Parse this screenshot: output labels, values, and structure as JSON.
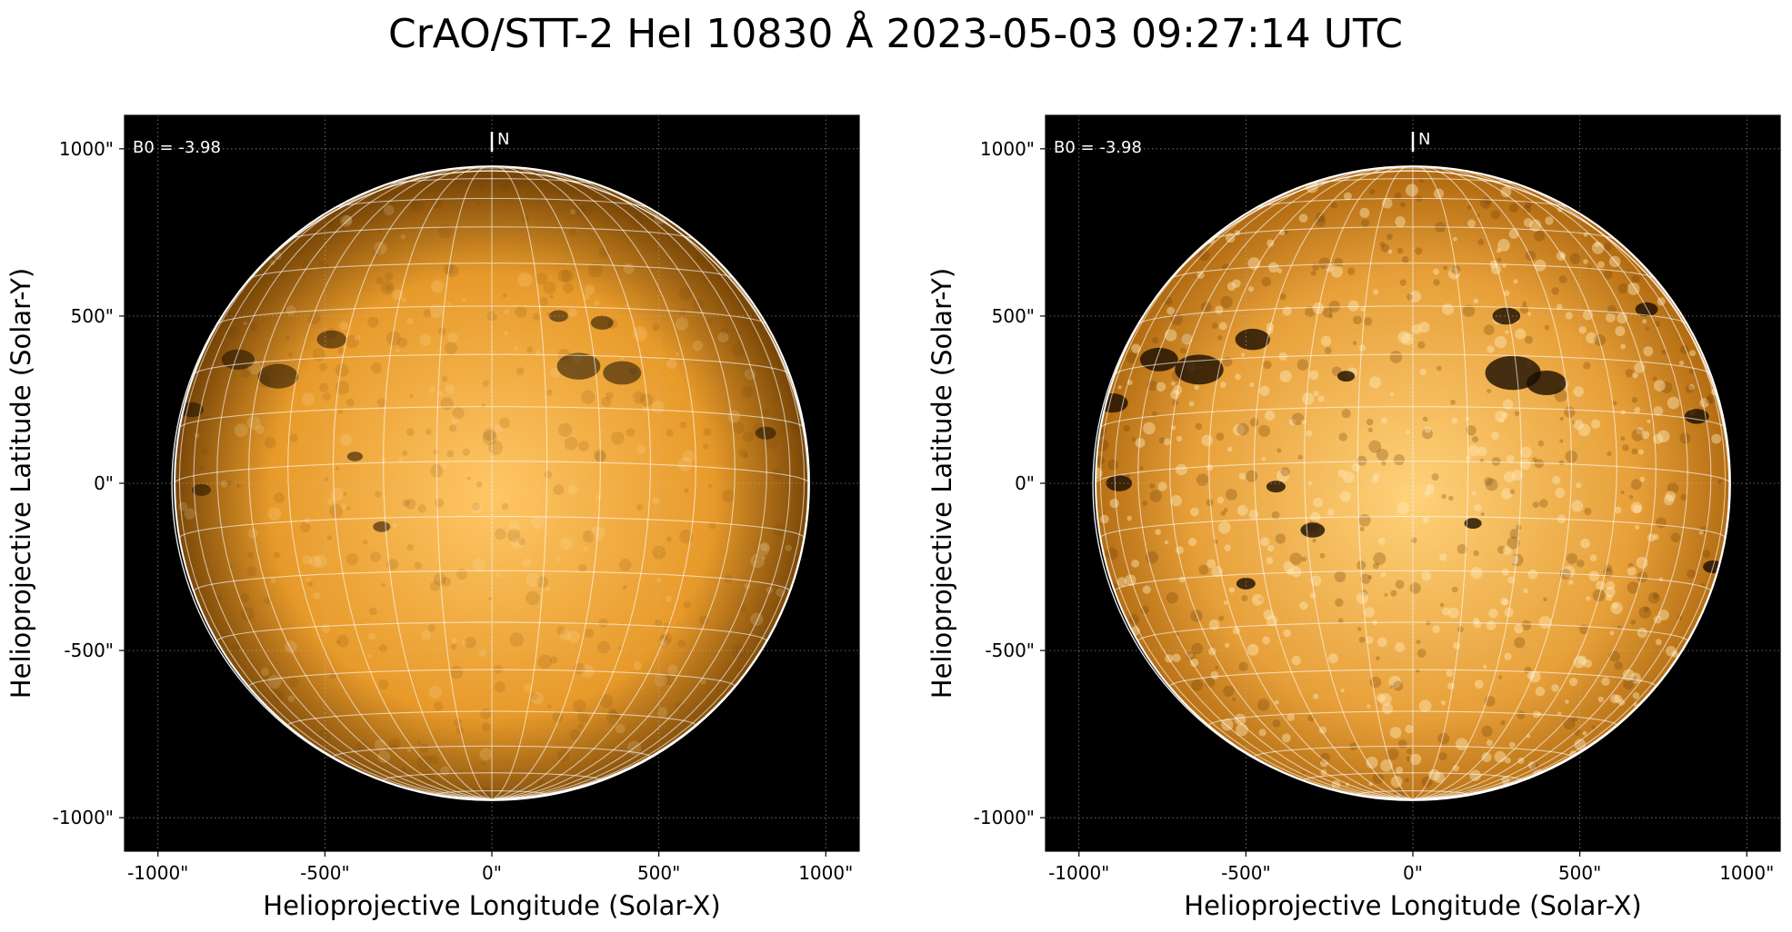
{
  "figure": {
    "title": "CrAO/STT-2 HeI 10830 Å 2023-05-03 09:27:14 UTC"
  },
  "panels": [
    {
      "id": "left",
      "b0_label": "B0 = -3.98",
      "north_label": "N",
      "xlabel": "Helioprojective Longitude (Solar-X)",
      "ylabel": "Helioprojective Latitude (Solar-Y)",
      "xticks": [
        "-1000\"",
        "-500\"",
        "0\"",
        "500\"",
        "1000\""
      ],
      "yticks": [
        "1000\"",
        "500\"",
        "0\"",
        "-500\"",
        "-1000\""
      ],
      "xtick_values": [
        -1000,
        -500,
        0,
        500,
        1000
      ],
      "ytick_values": [
        1000,
        500,
        0,
        -500,
        -1000
      ],
      "range": [
        -1100,
        1100
      ],
      "solar_radius_arcsec": 950,
      "disk_colors": {
        "center": "#ffc766",
        "mid": "#e79a2a",
        "limb": "#7a4707"
      },
      "dark_features": [
        [
          -760,
          370,
          38
        ],
        [
          -640,
          320,
          46
        ],
        [
          -480,
          430,
          34
        ],
        [
          -900,
          220,
          28
        ],
        [
          260,
          350,
          50
        ],
        [
          390,
          330,
          44
        ],
        [
          330,
          480,
          26
        ],
        [
          -870,
          -20,
          22
        ],
        [
          200,
          500,
          22
        ],
        [
          820,
          150,
          24
        ],
        [
          -330,
          -130,
          20
        ],
        [
          -410,
          80,
          18
        ]
      ]
    },
    {
      "id": "right",
      "b0_label": "B0 = -3.98",
      "north_label": "N",
      "xlabel": "Helioprojective Longitude (Solar-X)",
      "ylabel": "Helioprojective Latitude (Solar-Y)",
      "xticks": [
        "-1000\"",
        "-500\"",
        "0\"",
        "500\"",
        "1000\""
      ],
      "yticks": [
        "1000\"",
        "500\"",
        "0\"",
        "-500\"",
        "-1000\""
      ],
      "xtick_values": [
        -1000,
        -500,
        0,
        500,
        1000
      ],
      "ytick_values": [
        1000,
        500,
        0,
        -500,
        -1000
      ],
      "range": [
        -1100,
        1100
      ],
      "solar_radius_arcsec": 950,
      "disk_colors": {
        "center": "#ffd27a",
        "mid": "#e7a039",
        "limb": "#b46d12"
      },
      "dark_features": [
        [
          -640,
          340,
          56
        ],
        [
          -760,
          370,
          44
        ],
        [
          -480,
          430,
          40
        ],
        [
          -900,
          240,
          36
        ],
        [
          300,
          330,
          64
        ],
        [
          400,
          300,
          46
        ],
        [
          280,
          500,
          32
        ],
        [
          -880,
          0,
          30
        ],
        [
          700,
          520,
          26
        ],
        [
          850,
          200,
          28
        ],
        [
          900,
          -250,
          24
        ],
        [
          -300,
          -140,
          28
        ],
        [
          -410,
          -10,
          22
        ],
        [
          180,
          -120,
          20
        ],
        [
          -500,
          -300,
          22
        ],
        [
          -200,
          320,
          20
        ]
      ]
    }
  ]
}
